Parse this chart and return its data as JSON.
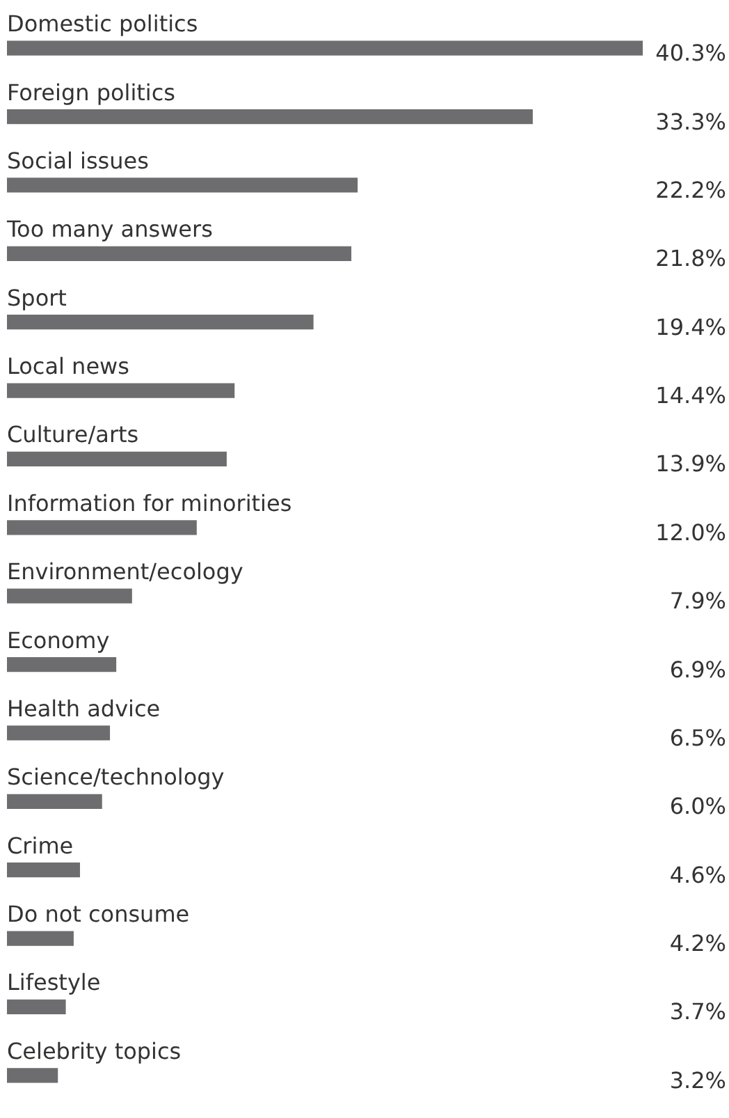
{
  "chart_data": {
    "type": "bar",
    "orientation": "horizontal",
    "data_labels": true,
    "legend": false,
    "tick_labels": false,
    "categories": [
      "Domestic politics",
      "Foreign politics",
      "Social issues",
      "Too many answers",
      "Sport",
      "Local news",
      "Culture/arts",
      "Information for minorities",
      "Environment/ecology",
      "Economy",
      "Health advice",
      "Science/technology",
      "Crime",
      "Do not consume",
      "Lifestyle",
      "Celebrity topics"
    ],
    "series": [
      {
        "color": "#6d6d6f",
        "values": [
          40.3,
          33.3,
          22.2,
          21.8,
          19.4,
          14.4,
          13.9,
          12.0,
          7.9,
          6.9,
          6.5,
          6.0,
          4.6,
          4.2,
          3.7,
          3.2
        ],
        "value_labels": [
          "40.3%",
          "33.3%",
          "22.2%",
          "21.8%",
          "19.4%",
          "14.4%",
          "13.9%",
          "12.0%",
          "7.9%",
          "6.9%",
          "6.5%",
          "6.0%",
          "4.6%",
          "4.2%",
          "3.7%",
          "3.2%"
        ]
      }
    ]
  }
}
